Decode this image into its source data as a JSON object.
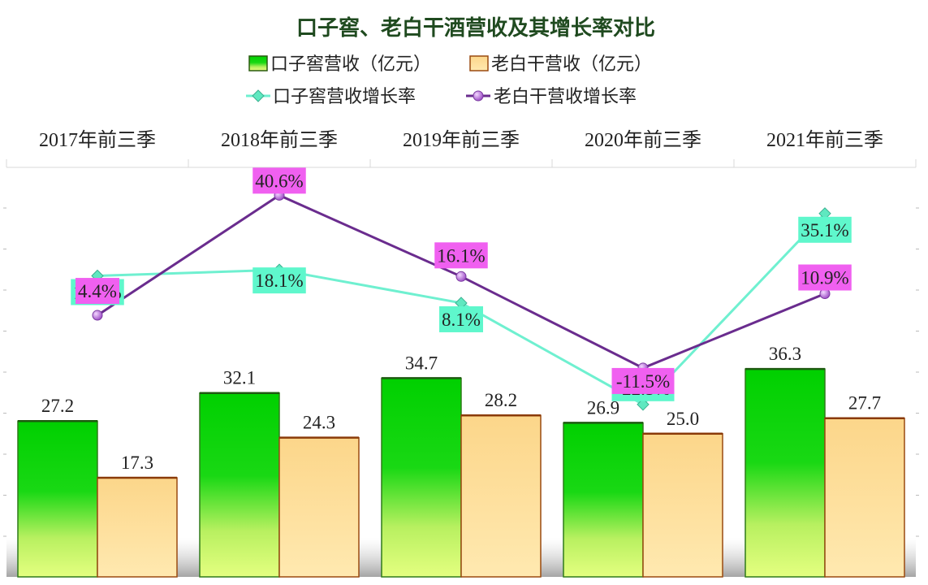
{
  "chart_data": {
    "type": "bar",
    "title": "口子窖、老白干酒营收及其增长率对比",
    "categories": [
      "2017年前三季",
      "2018年前三季",
      "2019年前三季",
      "2020年前三季",
      "2021年前三季"
    ],
    "series": [
      {
        "name": "口子窖营收（亿元）",
        "kind": "bar",
        "values": [
          27.2,
          32.1,
          34.7,
          26.9,
          36.3
        ],
        "labels": [
          "27.2",
          "32.1",
          "34.7",
          "26.9",
          "36.3"
        ]
      },
      {
        "name": "老白干营收（亿元）",
        "kind": "bar",
        "values": [
          17.3,
          24.3,
          28.2,
          25.0,
          27.7
        ],
        "labels": [
          "17.3",
          "24.3",
          "28.2",
          "25.0",
          "27.7"
        ]
      },
      {
        "name": "口子窖营收增长率",
        "kind": "line",
        "values": [
          16.3,
          18.1,
          8.1,
          -22.5,
          35.1
        ],
        "labels": [
          "16.3%",
          "18.1%",
          "8.1%",
          "-22.5%",
          "35.1%"
        ]
      },
      {
        "name": "老白干营收增长率",
        "kind": "line",
        "values": [
          4.4,
          40.6,
          16.1,
          -11.5,
          10.9
        ],
        "labels": [
          "4.4%",
          "40.6%",
          "16.1%",
          "-11.5%",
          "10.9%"
        ]
      }
    ],
    "bar_ylim": [
      0,
      70
    ],
    "line_ylim": [
      -40,
      50
    ],
    "legend_position": "top",
    "category_axis_position": "top",
    "grid": false
  },
  "colors": {
    "kouzijiao_bar_top": "#00d400",
    "kouzijiao_bar_bottom": "#ddff80",
    "laobaigan_bar_top": "#fcd98a",
    "laobaigan_bar_bottom": "#ffeab0",
    "laobaigan_bar_border": "#9a4a10",
    "kouzijiao_line": "#6ff0d0",
    "laobaigan_line": "#6a2c8e",
    "kouzijiao_label_bg": "#5ff7cc",
    "laobaigan_label_bg": "#f060f0",
    "title": "#1f4a1f"
  },
  "icons": {
    "kouzijiao_marker": "diamond-icon",
    "laobaigan_marker": "sphere-icon"
  }
}
